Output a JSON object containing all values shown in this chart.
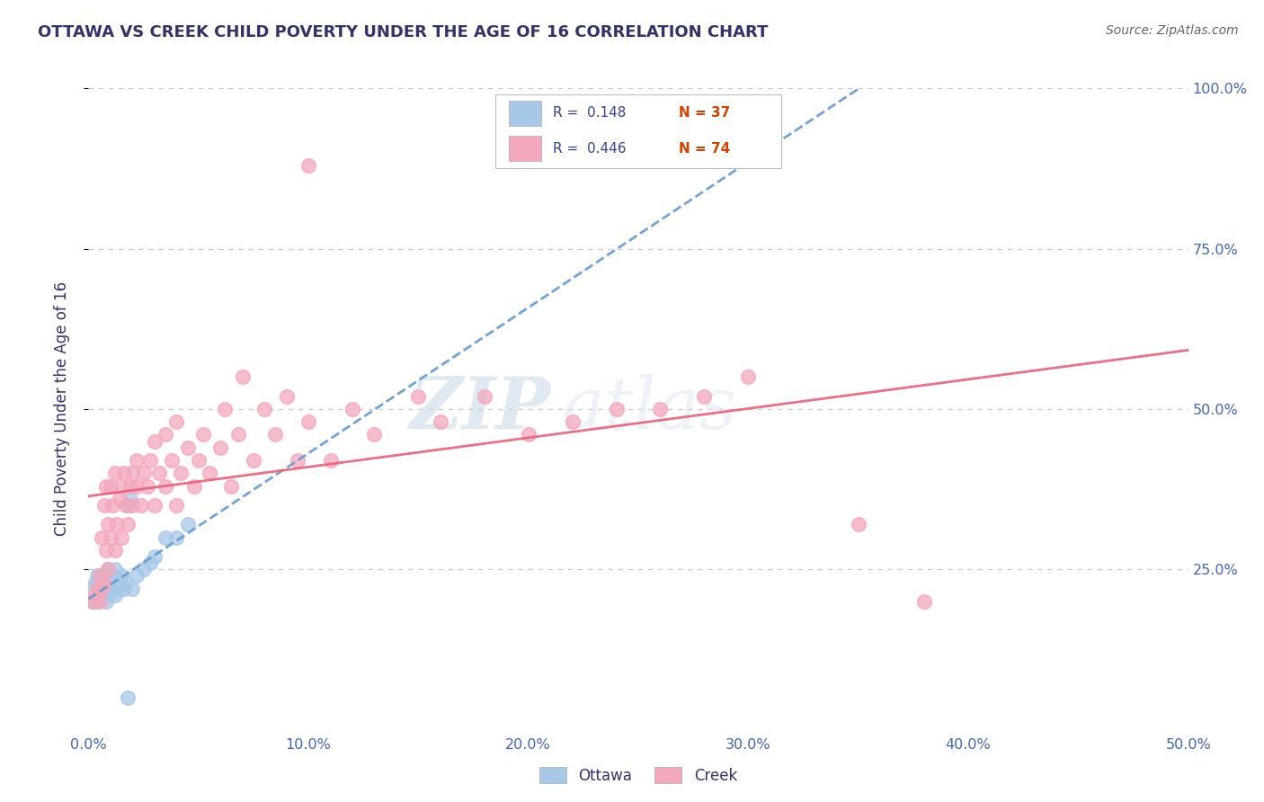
{
  "title": "OTTAWA VS CREEK CHILD POVERTY UNDER THE AGE OF 16 CORRELATION CHART",
  "source": "Source: ZipAtlas.com",
  "ylabel": "Child Poverty Under the Age of 16",
  "xlim": [
    0.0,
    0.5
  ],
  "ylim": [
    0.0,
    1.0
  ],
  "xtick_vals": [
    0.0,
    0.1,
    0.2,
    0.3,
    0.4,
    0.5
  ],
  "xtick_labels": [
    "0.0%",
    "10.0%",
    "20.0%",
    "30.0%",
    "40.0%",
    "50.0%"
  ],
  "ytick_vals": [
    0.25,
    0.5,
    0.75,
    1.0
  ],
  "ytick_labels": [
    "25.0%",
    "50.0%",
    "75.0%",
    "100.0%"
  ],
  "ottawa_color": "#a8c8e8",
  "creek_color": "#f4a8bc",
  "ottawa_line_color": "#6699cc",
  "creek_line_color": "#e8607a",
  "ottawa_R": 0.148,
  "ottawa_N": 37,
  "creek_R": 0.446,
  "creek_N": 74,
  "legend_label_ottawa": "Ottawa",
  "legend_label_creek": "Creek",
  "watermark_zip": "ZIP",
  "watermark_atlas": "atlas",
  "title_color": "#333366",
  "axis_label_color": "#333366",
  "tick_color": "#4466aa",
  "grid_color": "#cccccc",
  "legend_R_color": "#334488",
  "legend_N_color": "#cc4400",
  "ottawa_scatter": [
    [
      0.002,
      0.2
    ],
    [
      0.002,
      0.22
    ],
    [
      0.003,
      0.21
    ],
    [
      0.003,
      0.23
    ],
    [
      0.004,
      0.2
    ],
    [
      0.004,
      0.24
    ],
    [
      0.005,
      0.21
    ],
    [
      0.005,
      0.22
    ],
    [
      0.006,
      0.22
    ],
    [
      0.006,
      0.24
    ],
    [
      0.007,
      0.21
    ],
    [
      0.007,
      0.23
    ],
    [
      0.008,
      0.2
    ],
    [
      0.008,
      0.22
    ],
    [
      0.009,
      0.21
    ],
    [
      0.009,
      0.25
    ],
    [
      0.01,
      0.22
    ],
    [
      0.01,
      0.24
    ],
    [
      0.011,
      0.23
    ],
    [
      0.012,
      0.21
    ],
    [
      0.012,
      0.25
    ],
    [
      0.013,
      0.22
    ],
    [
      0.014,
      0.23
    ],
    [
      0.015,
      0.24
    ],
    [
      0.016,
      0.22
    ],
    [
      0.017,
      0.23
    ],
    [
      0.018,
      0.35
    ],
    [
      0.019,
      0.36
    ],
    [
      0.02,
      0.22
    ],
    [
      0.022,
      0.24
    ],
    [
      0.025,
      0.25
    ],
    [
      0.028,
      0.26
    ],
    [
      0.03,
      0.27
    ],
    [
      0.035,
      0.3
    ],
    [
      0.04,
      0.3
    ],
    [
      0.045,
      0.32
    ],
    [
      0.018,
      0.05
    ]
  ],
  "creek_scatter": [
    [
      0.002,
      0.2
    ],
    [
      0.003,
      0.21
    ],
    [
      0.004,
      0.22
    ],
    [
      0.005,
      0.2
    ],
    [
      0.005,
      0.24
    ],
    [
      0.006,
      0.22
    ],
    [
      0.006,
      0.3
    ],
    [
      0.007,
      0.23
    ],
    [
      0.007,
      0.35
    ],
    [
      0.008,
      0.28
    ],
    [
      0.008,
      0.38
    ],
    [
      0.009,
      0.25
    ],
    [
      0.009,
      0.32
    ],
    [
      0.01,
      0.3
    ],
    [
      0.01,
      0.38
    ],
    [
      0.011,
      0.35
    ],
    [
      0.012,
      0.28
    ],
    [
      0.012,
      0.4
    ],
    [
      0.013,
      0.32
    ],
    [
      0.014,
      0.36
    ],
    [
      0.015,
      0.3
    ],
    [
      0.015,
      0.38
    ],
    [
      0.016,
      0.4
    ],
    [
      0.017,
      0.35
    ],
    [
      0.018,
      0.32
    ],
    [
      0.019,
      0.38
    ],
    [
      0.02,
      0.35
    ],
    [
      0.02,
      0.4
    ],
    [
      0.022,
      0.38
    ],
    [
      0.022,
      0.42
    ],
    [
      0.024,
      0.35
    ],
    [
      0.025,
      0.4
    ],
    [
      0.027,
      0.38
    ],
    [
      0.028,
      0.42
    ],
    [
      0.03,
      0.35
    ],
    [
      0.03,
      0.45
    ],
    [
      0.032,
      0.4
    ],
    [
      0.035,
      0.38
    ],
    [
      0.035,
      0.46
    ],
    [
      0.038,
      0.42
    ],
    [
      0.04,
      0.35
    ],
    [
      0.04,
      0.48
    ],
    [
      0.042,
      0.4
    ],
    [
      0.045,
      0.44
    ],
    [
      0.048,
      0.38
    ],
    [
      0.05,
      0.42
    ],
    [
      0.052,
      0.46
    ],
    [
      0.055,
      0.4
    ],
    [
      0.06,
      0.44
    ],
    [
      0.062,
      0.5
    ],
    [
      0.065,
      0.38
    ],
    [
      0.068,
      0.46
    ],
    [
      0.07,
      0.55
    ],
    [
      0.075,
      0.42
    ],
    [
      0.08,
      0.5
    ],
    [
      0.085,
      0.46
    ],
    [
      0.09,
      0.52
    ],
    [
      0.095,
      0.42
    ],
    [
      0.1,
      0.48
    ],
    [
      0.11,
      0.42
    ],
    [
      0.12,
      0.5
    ],
    [
      0.13,
      0.46
    ],
    [
      0.15,
      0.52
    ],
    [
      0.16,
      0.48
    ],
    [
      0.18,
      0.52
    ],
    [
      0.2,
      0.46
    ],
    [
      0.22,
      0.48
    ],
    [
      0.24,
      0.5
    ],
    [
      0.26,
      0.5
    ],
    [
      0.28,
      0.52
    ],
    [
      0.3,
      0.55
    ],
    [
      0.35,
      0.32
    ],
    [
      0.38,
      0.2
    ],
    [
      0.1,
      0.88
    ]
  ]
}
